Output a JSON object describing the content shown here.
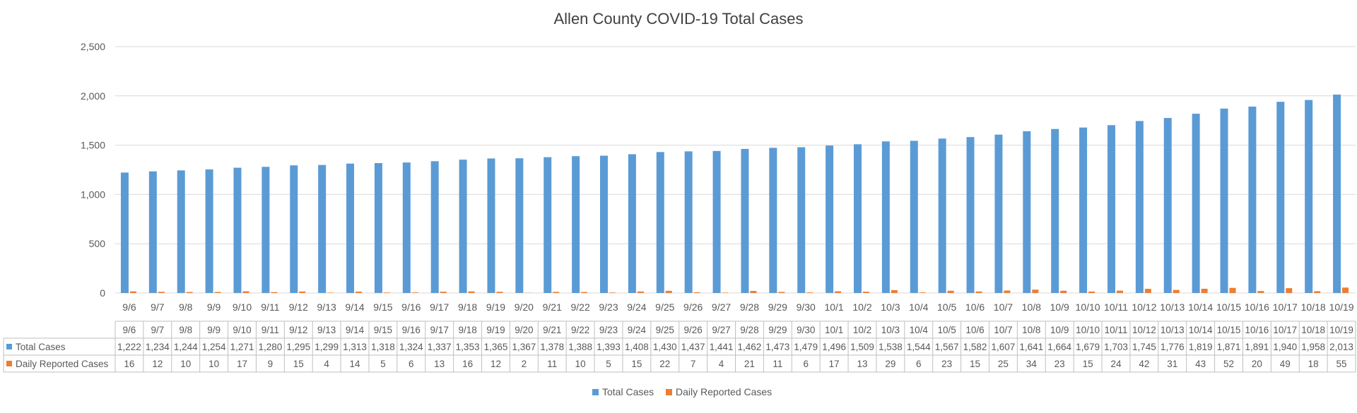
{
  "chart_data": {
    "type": "bar",
    "title": "Allen County COVID-19 Total Cases",
    "categories": [
      "9/6",
      "9/7",
      "9/8",
      "9/9",
      "9/10",
      "9/11",
      "9/12",
      "9/13",
      "9/14",
      "9/15",
      "9/16",
      "9/17",
      "9/18",
      "9/19",
      "9/20",
      "9/21",
      "9/22",
      "9/23",
      "9/24",
      "9/25",
      "9/26",
      "9/27",
      "9/28",
      "9/29",
      "9/30",
      "10/1",
      "10/2",
      "10/3",
      "10/4",
      "10/5",
      "10/6",
      "10/7",
      "10/8",
      "10/9",
      "10/10",
      "10/11",
      "10/12",
      "10/13",
      "10/14",
      "10/15",
      "10/16",
      "10/17",
      "10/18",
      "10/19"
    ],
    "series": [
      {
        "name": "Total Cases",
        "color": "#5b9bd5",
        "values": [
          1222,
          1234,
          1244,
          1254,
          1271,
          1280,
          1295,
          1299,
          1313,
          1318,
          1324,
          1337,
          1353,
          1365,
          1367,
          1378,
          1388,
          1393,
          1408,
          1430,
          1437,
          1441,
          1462,
          1473,
          1479,
          1496,
          1509,
          1538,
          1544,
          1567,
          1582,
          1607,
          1641,
          1664,
          1679,
          1703,
          1745,
          1776,
          1819,
          1871,
          1891,
          1940,
          1958,
          2013
        ]
      },
      {
        "name": "Daily Reported Cases",
        "color": "#ed7d31",
        "values": [
          16,
          12,
          10,
          10,
          17,
          9,
          15,
          4,
          14,
          5,
          6,
          13,
          16,
          12,
          2,
          11,
          10,
          5,
          15,
          22,
          7,
          4,
          21,
          11,
          6,
          17,
          13,
          29,
          6,
          23,
          15,
          25,
          34,
          23,
          15,
          24,
          42,
          31,
          43,
          52,
          20,
          49,
          18,
          55
        ]
      }
    ],
    "ylim": [
      0,
      2500
    ],
    "yticks": [
      0,
      500,
      1000,
      1500,
      2000,
      2500
    ],
    "grid": true,
    "legend": "bottom-center",
    "data_table": true
  }
}
